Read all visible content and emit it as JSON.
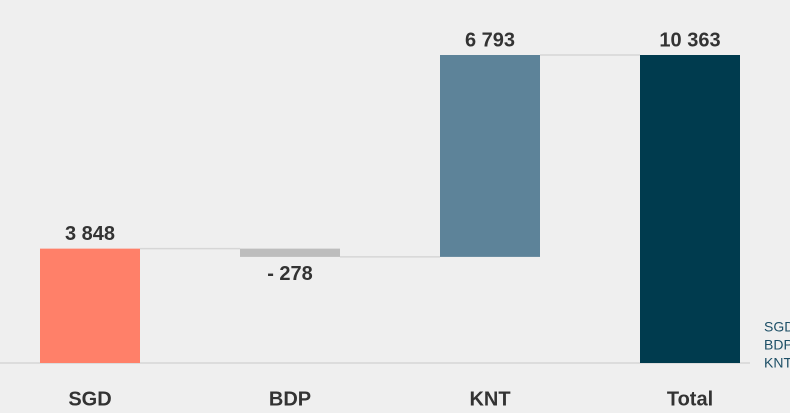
{
  "chart_data": {
    "type": "waterfall",
    "categories": [
      "SGD",
      "BDP",
      "KNT",
      "Total"
    ],
    "values": [
      3848,
      -278,
      6793,
      10363
    ],
    "value_labels": [
      "3 848",
      "- 278",
      "6 793",
      "10 363"
    ],
    "colors": [
      "#ff8069",
      "#bdbdbd",
      "#5d8399",
      "#003b4e"
    ]
  }
}
